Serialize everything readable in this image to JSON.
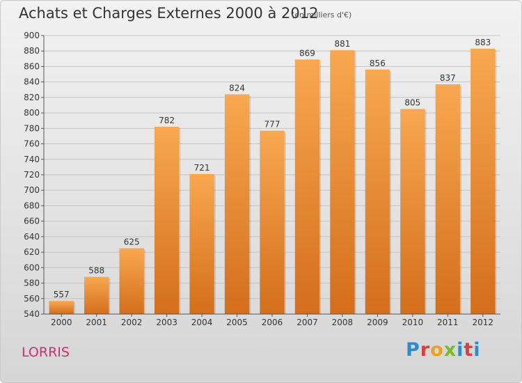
{
  "chart_data": {
    "type": "bar",
    "title": "Achats et Charges Externes 2000 à 2012",
    "subtitle": "(en milliers d'€)",
    "categories": [
      "2000",
      "2001",
      "2002",
      "2003",
      "2004",
      "2005",
      "2006",
      "2007",
      "2008",
      "2009",
      "2010",
      "2011",
      "2012"
    ],
    "values": [
      557,
      588,
      625,
      782,
      721,
      824,
      777,
      869,
      881,
      856,
      805,
      837,
      883
    ],
    "ylim": [
      540,
      900
    ],
    "yticks": [
      540,
      560,
      580,
      600,
      620,
      640,
      660,
      680,
      700,
      720,
      740,
      760,
      780,
      800,
      820,
      840,
      860,
      880,
      900
    ],
    "grid": true,
    "bar_color_top": "#f8a850",
    "bar_color_bottom": "#d46e1a"
  },
  "footer": {
    "commune": "LORRIS",
    "logo": "Proxiti"
  }
}
